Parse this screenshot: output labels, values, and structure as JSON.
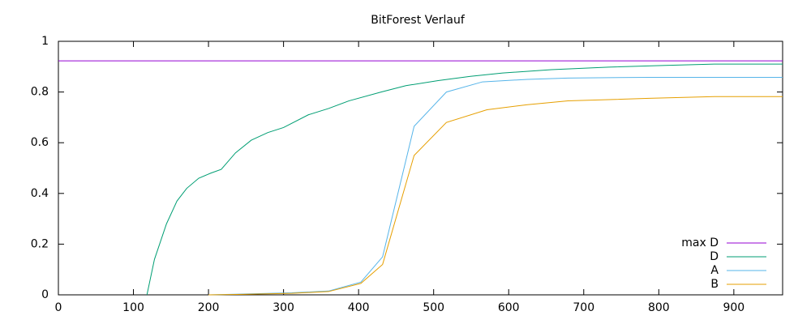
{
  "chart_data": {
    "type": "line",
    "title": "BitForest Verlauf",
    "xlim": [
      0,
      965
    ],
    "ylim": [
      0,
      1
    ],
    "xticks": [
      0,
      100,
      200,
      300,
      400,
      500,
      600,
      700,
      800,
      900
    ],
    "yticks": [
      0,
      0.2,
      0.4,
      0.6,
      0.8,
      1
    ],
    "legend": "bottom-right",
    "series": [
      {
        "name": "max D",
        "color": "#9400d3",
        "x": [
          0,
          965
        ],
        "values": [
          0.923,
          0.923
        ]
      },
      {
        "name": "D",
        "color": "#009e73",
        "x": [
          118,
          128,
          144,
          158,
          171,
          187,
          203,
          217,
          236,
          257,
          279,
          300,
          333,
          360,
          387,
          430,
          463,
          506,
          549,
          592,
          657,
          733,
          809,
          874,
          965
        ],
        "values": [
          0,
          0.14,
          0.28,
          0.37,
          0.42,
          0.46,
          0.48,
          0.495,
          0.56,
          0.61,
          0.64,
          0.66,
          0.71,
          0.735,
          0.765,
          0.8,
          0.825,
          0.845,
          0.862,
          0.875,
          0.888,
          0.898,
          0.905,
          0.91,
          0.91
        ]
      },
      {
        "name": "A",
        "color": "#56b4e9",
        "x": [
          200,
          246,
          311,
          360,
          403,
          432,
          474,
          517,
          565,
          625,
          679,
          787,
          965
        ],
        "values": [
          0,
          0.003,
          0.008,
          0.015,
          0.05,
          0.15,
          0.665,
          0.8,
          0.84,
          0.85,
          0.855,
          0.858,
          0.858
        ]
      },
      {
        "name": "B",
        "color": "#e69f00",
        "x": [
          200,
          246,
          311,
          360,
          403,
          432,
          474,
          517,
          571,
          625,
          679,
          787,
          874,
          965
        ],
        "values": [
          0,
          0.002,
          0.006,
          0.013,
          0.045,
          0.12,
          0.55,
          0.68,
          0.73,
          0.75,
          0.765,
          0.775,
          0.782,
          0.782
        ]
      }
    ]
  }
}
